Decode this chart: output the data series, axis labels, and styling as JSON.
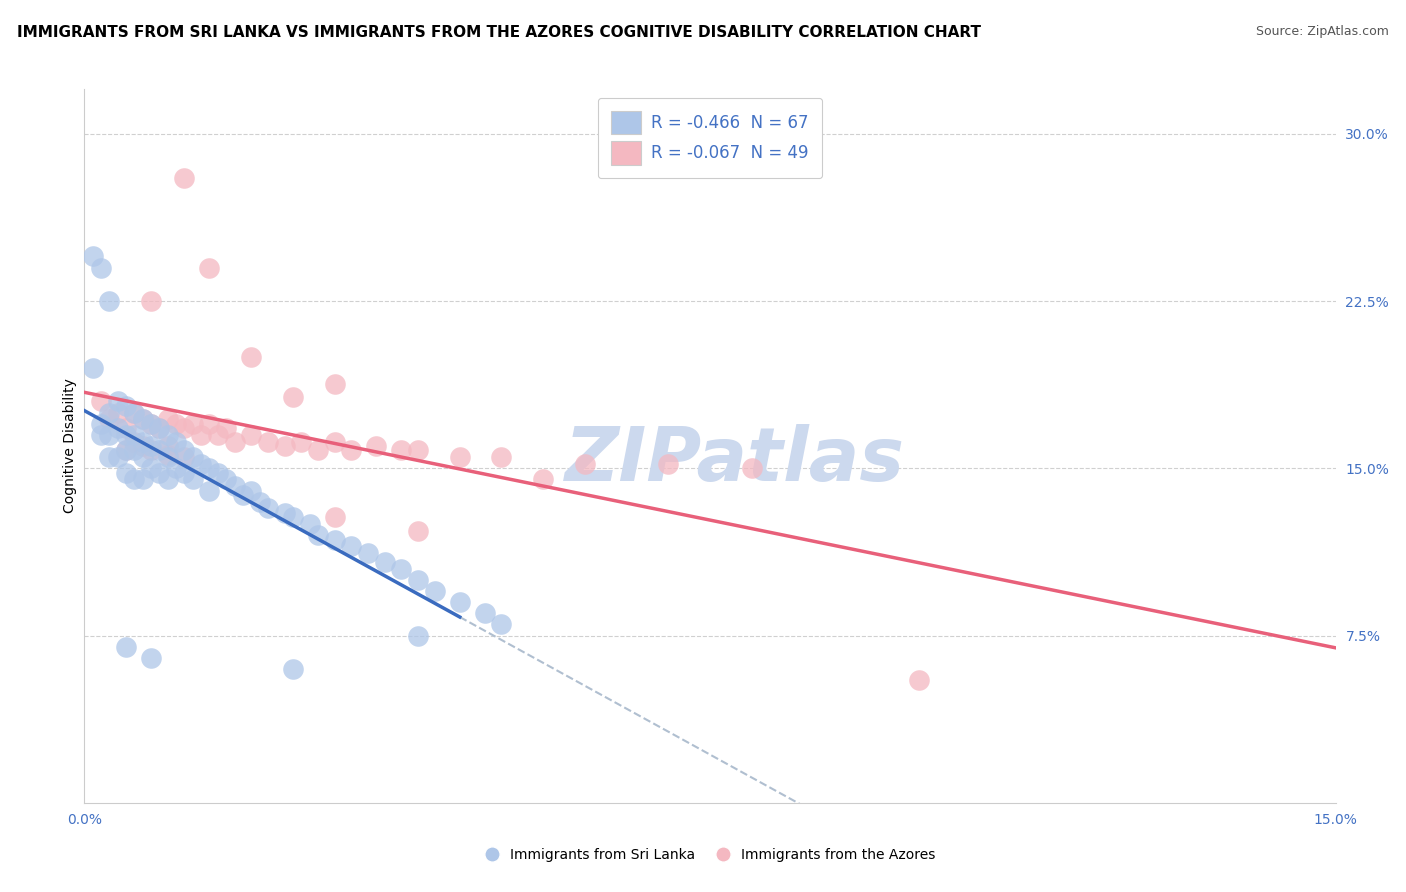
{
  "title": "IMMIGRANTS FROM SRI LANKA VS IMMIGRANTS FROM THE AZORES COGNITIVE DISABILITY CORRELATION CHART",
  "source": "Source: ZipAtlas.com",
  "ylabel": "Cognitive Disability",
  "y_ticks": [
    "7.5%",
    "15.0%",
    "22.5%",
    "30.0%"
  ],
  "y_tick_vals": [
    0.075,
    0.15,
    0.225,
    0.3
  ],
  "x_lim": [
    0.0,
    0.15
  ],
  "y_lim": [
    0.0,
    0.32
  ],
  "legend_label1": "R = -0.466  N = 67",
  "legend_label2": "R = -0.067  N = 49",
  "legend_color1": "#aec6e8",
  "legend_color2": "#f4b8c1",
  "scatter_color1": "#aec6e8",
  "scatter_color2": "#f4b8c1",
  "line_color1": "#3a6bbf",
  "line_color2": "#e8607a",
  "dashed_line_color": "#b0bfd0",
  "watermark_color": "#ccd9ee",
  "title_fontsize": 11,
  "source_fontsize": 9,
  "axis_label_fontsize": 10,
  "tick_fontsize": 10,
  "legend_fontsize": 12,
  "blue_x": [
    0.001,
    0.002,
    0.002,
    0.003,
    0.003,
    0.003,
    0.004,
    0.004,
    0.004,
    0.005,
    0.005,
    0.005,
    0.005,
    0.006,
    0.006,
    0.006,
    0.006,
    0.007,
    0.007,
    0.007,
    0.007,
    0.008,
    0.008,
    0.008,
    0.009,
    0.009,
    0.009,
    0.01,
    0.01,
    0.01,
    0.011,
    0.011,
    0.012,
    0.012,
    0.013,
    0.013,
    0.014,
    0.015,
    0.015,
    0.016,
    0.017,
    0.018,
    0.019,
    0.02,
    0.021,
    0.022,
    0.024,
    0.025,
    0.027,
    0.028,
    0.03,
    0.032,
    0.034,
    0.036,
    0.038,
    0.04,
    0.042,
    0.045,
    0.048,
    0.05,
    0.001,
    0.002,
    0.003,
    0.005,
    0.008,
    0.025,
    0.04
  ],
  "blue_y": [
    0.195,
    0.17,
    0.165,
    0.175,
    0.165,
    0.155,
    0.18,
    0.168,
    0.155,
    0.178,
    0.165,
    0.158,
    0.148,
    0.175,
    0.165,
    0.158,
    0.145,
    0.172,
    0.162,
    0.155,
    0.145,
    0.17,
    0.16,
    0.15,
    0.168,
    0.158,
    0.148,
    0.165,
    0.155,
    0.145,
    0.162,
    0.15,
    0.158,
    0.148,
    0.155,
    0.145,
    0.152,
    0.15,
    0.14,
    0.148,
    0.145,
    0.142,
    0.138,
    0.14,
    0.135,
    0.132,
    0.13,
    0.128,
    0.125,
    0.12,
    0.118,
    0.115,
    0.112,
    0.108,
    0.105,
    0.1,
    0.095,
    0.09,
    0.085,
    0.08,
    0.245,
    0.24,
    0.225,
    0.07,
    0.065,
    0.06,
    0.075
  ],
  "pink_x": [
    0.002,
    0.003,
    0.004,
    0.005,
    0.005,
    0.006,
    0.006,
    0.007,
    0.007,
    0.008,
    0.008,
    0.009,
    0.01,
    0.01,
    0.011,
    0.012,
    0.012,
    0.013,
    0.014,
    0.015,
    0.016,
    0.017,
    0.018,
    0.02,
    0.022,
    0.024,
    0.026,
    0.028,
    0.03,
    0.032,
    0.035,
    0.038,
    0.04,
    0.045,
    0.05,
    0.06,
    0.07,
    0.08,
    0.1,
    0.015,
    0.02,
    0.025,
    0.03,
    0.04,
    0.055,
    0.03,
    0.008,
    0.012,
    0.01
  ],
  "pink_y": [
    0.18,
    0.172,
    0.175,
    0.168,
    0.158,
    0.175,
    0.162,
    0.172,
    0.16,
    0.17,
    0.158,
    0.168,
    0.172,
    0.16,
    0.17,
    0.168,
    0.155,
    0.17,
    0.165,
    0.17,
    0.165,
    0.168,
    0.162,
    0.165,
    0.162,
    0.16,
    0.162,
    0.158,
    0.162,
    0.158,
    0.16,
    0.158,
    0.158,
    0.155,
    0.155,
    0.152,
    0.152,
    0.15,
    0.055,
    0.24,
    0.2,
    0.182,
    0.188,
    0.122,
    0.145,
    0.128,
    0.225,
    0.28,
    0.156
  ]
}
